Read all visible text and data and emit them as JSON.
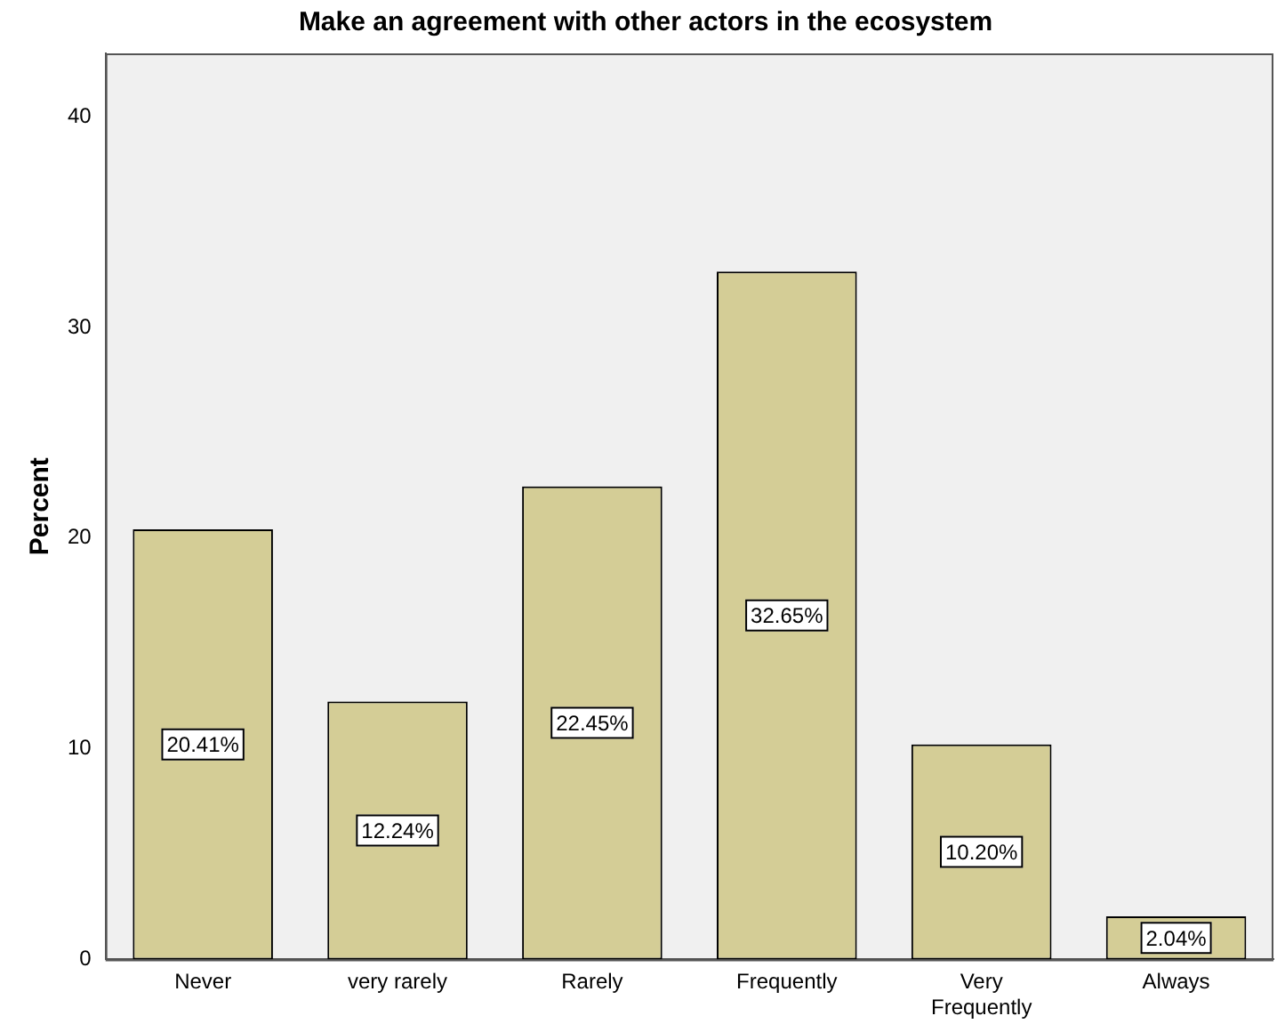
{
  "chart_data": {
    "type": "bar",
    "title": "Make an agreement with other actors in the ecosystem",
    "ylabel": "Percent",
    "categories": [
      "Never",
      "very rarely",
      "Rarely",
      "Frequently",
      "Very Frequently",
      "Always"
    ],
    "values": [
      20.41,
      12.24,
      22.45,
      32.65,
      10.2,
      2.04
    ],
    "value_labels": [
      "20.41%",
      "12.24%",
      "22.45%",
      "32.65%",
      "10.20%",
      "2.04%"
    ],
    "color": "#d4cd96",
    "ylim": [
      0,
      43
    ],
    "yticks": [
      0,
      10,
      20,
      30,
      40
    ],
    "grid": false,
    "legend": false
  }
}
